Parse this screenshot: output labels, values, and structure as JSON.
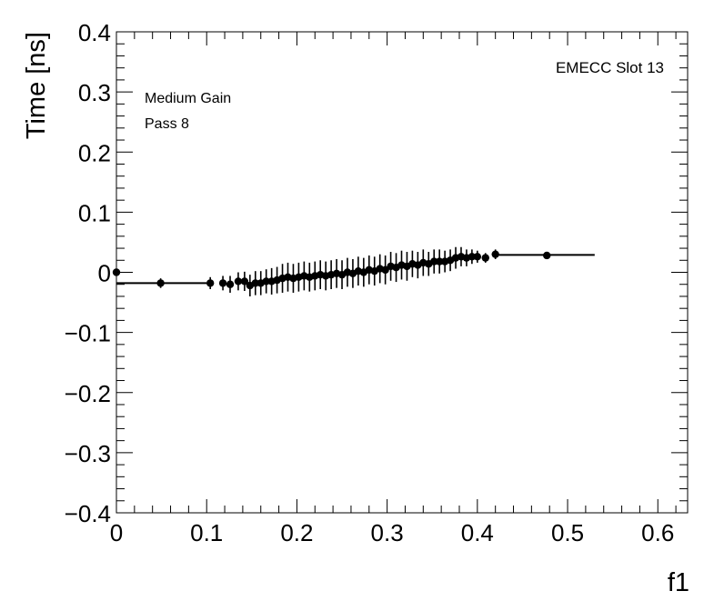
{
  "chart_data": {
    "type": "scatter",
    "title": "",
    "xlabel": "f1",
    "ylabel": "Time [ns]",
    "xlim": [
      0,
      0.633
    ],
    "ylim": [
      -0.4,
      0.4
    ],
    "x_ticks": [
      "0",
      "0.1",
      "0.2",
      "0.3",
      "0.4",
      "0.5",
      "0.6"
    ],
    "y_ticks": [
      "−0.4",
      "−0.3",
      "−0.2",
      "−0.1",
      "0",
      "0.1",
      "0.2",
      "0.3",
      "0.4"
    ],
    "annotations": {
      "gain": "Medium Gain",
      "pass": "Pass 8",
      "slot": "EMECC Slot 13"
    },
    "grid": false,
    "series": [
      {
        "points": [
          {
            "x": 0.0,
            "y": 0.0,
            "err": 0.0
          },
          {
            "x": 0.049,
            "y": -0.018,
            "err": 0.008
          },
          {
            "x": 0.104,
            "y": -0.018,
            "err": 0.01
          },
          {
            "x": 0.118,
            "y": -0.018,
            "err": 0.012
          },
          {
            "x": 0.126,
            "y": -0.02,
            "err": 0.014
          },
          {
            "x": 0.135,
            "y": -0.015,
            "err": 0.015
          },
          {
            "x": 0.142,
            "y": -0.015,
            "err": 0.016
          },
          {
            "x": 0.148,
            "y": -0.022,
            "err": 0.018
          },
          {
            "x": 0.154,
            "y": -0.018,
            "err": 0.02
          },
          {
            "x": 0.16,
            "y": -0.018,
            "err": 0.02
          },
          {
            "x": 0.166,
            "y": -0.015,
            "err": 0.02
          },
          {
            "x": 0.172,
            "y": -0.015,
            "err": 0.022
          },
          {
            "x": 0.178,
            "y": -0.013,
            "err": 0.022
          },
          {
            "x": 0.184,
            "y": -0.01,
            "err": 0.024
          },
          {
            "x": 0.19,
            "y": -0.008,
            "err": 0.024
          },
          {
            "x": 0.196,
            "y": -0.01,
            "err": 0.024
          },
          {
            "x": 0.202,
            "y": -0.008,
            "err": 0.024
          },
          {
            "x": 0.208,
            "y": -0.006,
            "err": 0.024
          },
          {
            "x": 0.214,
            "y": -0.008,
            "err": 0.024
          },
          {
            "x": 0.22,
            "y": -0.006,
            "err": 0.024
          },
          {
            "x": 0.226,
            "y": -0.004,
            "err": 0.024
          },
          {
            "x": 0.232,
            "y": -0.006,
            "err": 0.024
          },
          {
            "x": 0.238,
            "y": -0.004,
            "err": 0.024
          },
          {
            "x": 0.244,
            "y": -0.002,
            "err": 0.024
          },
          {
            "x": 0.25,
            "y": -0.004,
            "err": 0.024
          },
          {
            "x": 0.256,
            "y": 0.0,
            "err": 0.024
          },
          {
            "x": 0.262,
            "y": -0.002,
            "err": 0.024
          },
          {
            "x": 0.268,
            "y": 0.002,
            "err": 0.024
          },
          {
            "x": 0.274,
            "y": 0.0,
            "err": 0.024
          },
          {
            "x": 0.28,
            "y": 0.004,
            "err": 0.024
          },
          {
            "x": 0.286,
            "y": 0.002,
            "err": 0.024
          },
          {
            "x": 0.292,
            "y": 0.006,
            "err": 0.024
          },
          {
            "x": 0.298,
            "y": 0.004,
            "err": 0.024
          },
          {
            "x": 0.304,
            "y": 0.01,
            "err": 0.024
          },
          {
            "x": 0.31,
            "y": 0.008,
            "err": 0.024
          },
          {
            "x": 0.316,
            "y": 0.012,
            "err": 0.024
          },
          {
            "x": 0.322,
            "y": 0.01,
            "err": 0.024
          },
          {
            "x": 0.328,
            "y": 0.014,
            "err": 0.022
          },
          {
            "x": 0.334,
            "y": 0.012,
            "err": 0.022
          },
          {
            "x": 0.34,
            "y": 0.016,
            "err": 0.022
          },
          {
            "x": 0.346,
            "y": 0.014,
            "err": 0.02
          },
          {
            "x": 0.352,
            "y": 0.018,
            "err": 0.02
          },
          {
            "x": 0.358,
            "y": 0.018,
            "err": 0.02
          },
          {
            "x": 0.364,
            "y": 0.018,
            "err": 0.018
          },
          {
            "x": 0.37,
            "y": 0.02,
            "err": 0.018
          },
          {
            "x": 0.376,
            "y": 0.024,
            "err": 0.018
          },
          {
            "x": 0.382,
            "y": 0.026,
            "err": 0.016
          },
          {
            "x": 0.388,
            "y": 0.024,
            "err": 0.014
          },
          {
            "x": 0.394,
            "y": 0.026,
            "err": 0.012
          },
          {
            "x": 0.4,
            "y": 0.026,
            "err": 0.01
          },
          {
            "x": 0.409,
            "y": 0.024,
            "err": 0.008
          },
          {
            "x": 0.42,
            "y": 0.03,
            "err": 0.008
          },
          {
            "x": 0.477,
            "y": 0.028,
            "err": 0.006
          }
        ]
      }
    ],
    "fit_lines": [
      {
        "x": [
          0.0,
          0.1
        ],
        "y": [
          -0.018,
          -0.018
        ]
      },
      {
        "x": [
          0.42,
          0.53
        ],
        "y": [
          0.029,
          0.029
        ]
      }
    ],
    "colors": {
      "marker": "#000000",
      "axis": "#000000",
      "background": "#ffffff"
    }
  }
}
